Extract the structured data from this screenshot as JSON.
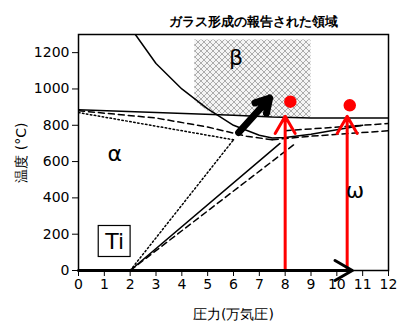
{
  "chart_data": {
    "type": "line",
    "title": "ガラス形成の報告された領域",
    "x_label": "圧力(万気圧)",
    "y_label": "温度 (°C)",
    "xlim": [
      0,
      12
    ],
    "ylim": [
      0,
      1300
    ],
    "xticks": [
      0,
      1,
      2,
      3,
      4,
      5,
      6,
      7,
      8,
      9,
      10,
      11,
      12
    ],
    "yticks": [
      0,
      200,
      400,
      600,
      800,
      1000,
      1200
    ],
    "grid": false,
    "lines": [
      {
        "line_style": "solid",
        "color": "#000000",
        "x": [
          0,
          3,
          6,
          7.5,
          9,
          12
        ],
        "y": [
          885,
          870,
          855,
          845,
          840,
          840
        ]
      },
      {
        "line_style": "solid",
        "color": "#000000",
        "x": [
          2.2,
          3,
          4,
          5,
          6,
          7,
          7.5,
          8,
          9,
          10,
          11
        ],
        "y": [
          1300,
          1140,
          1000,
          890,
          800,
          745,
          730,
          732,
          750,
          775,
          800
        ]
      },
      {
        "line_style": "solid",
        "color": "#000000",
        "x": [
          2,
          7.8
        ],
        "y": [
          0,
          700
        ]
      },
      {
        "line_style": "dashed",
        "color": "#000000",
        "x": [
          0,
          3,
          5,
          6.5,
          7.5
        ],
        "y": [
          880,
          840,
          790,
          740,
          720
        ]
      },
      {
        "line_style": "dashed",
        "color": "#000000",
        "x": [
          7.5,
          9,
          12
        ],
        "y": [
          720,
          740,
          770
        ]
      },
      {
        "line_style": "dashed",
        "color": "#000000",
        "x": [
          2,
          8.4
        ],
        "y": [
          0,
          700
        ]
      },
      {
        "line_style": "dashed",
        "color": "#000000",
        "x": [
          8,
          12
        ],
        "y": [
          770,
          810
        ]
      },
      {
        "line_style": "dotted",
        "color": "#000000",
        "x": [
          0,
          6
        ],
        "y": [
          870,
          720
        ]
      },
      {
        "line_style": "dotted",
        "color": "#000000",
        "x": [
          2,
          6
        ],
        "y": [
          0,
          720
        ]
      }
    ],
    "region": {
      "color": "#999999",
      "x": [
        4.5,
        5.2,
        6,
        7,
        8,
        9
      ],
      "y_low": [
        930,
        860,
        852,
        847,
        842,
        840
      ],
      "y_high": [
        1270,
        1270,
        1270,
        1270,
        1270,
        1270
      ]
    },
    "labels": [
      {
        "text": "α",
        "x": 1.4,
        "y": 640
      },
      {
        "text": "β",
        "x": 6.1,
        "y": 1170
      },
      {
        "text": "ω",
        "x": 10.7,
        "y": 440
      },
      {
        "text": "Ti",
        "x": 1.4,
        "y": 160
      }
    ],
    "arrows": [
      {
        "x1": 6.2,
        "y1": 760,
        "x2": 7.4,
        "y2": 950,
        "color": "#000000"
      },
      {
        "x1": 8,
        "y1": 0,
        "x2": 8,
        "y2": 850,
        "color": "#ff0000"
      },
      {
        "x1": 10.4,
        "y1": 0,
        "x2": 10.4,
        "y2": 850,
        "color": "#ff0000"
      },
      {
        "x1": 0,
        "y1": 0,
        "x2": 10.6,
        "y2": 0,
        "color": "#000000"
      }
    ],
    "points": [
      {
        "x": 8.2,
        "y": 930,
        "color": "#ff0000"
      },
      {
        "x": 10.5,
        "y": 910,
        "color": "#ff0000"
      }
    ]
  }
}
